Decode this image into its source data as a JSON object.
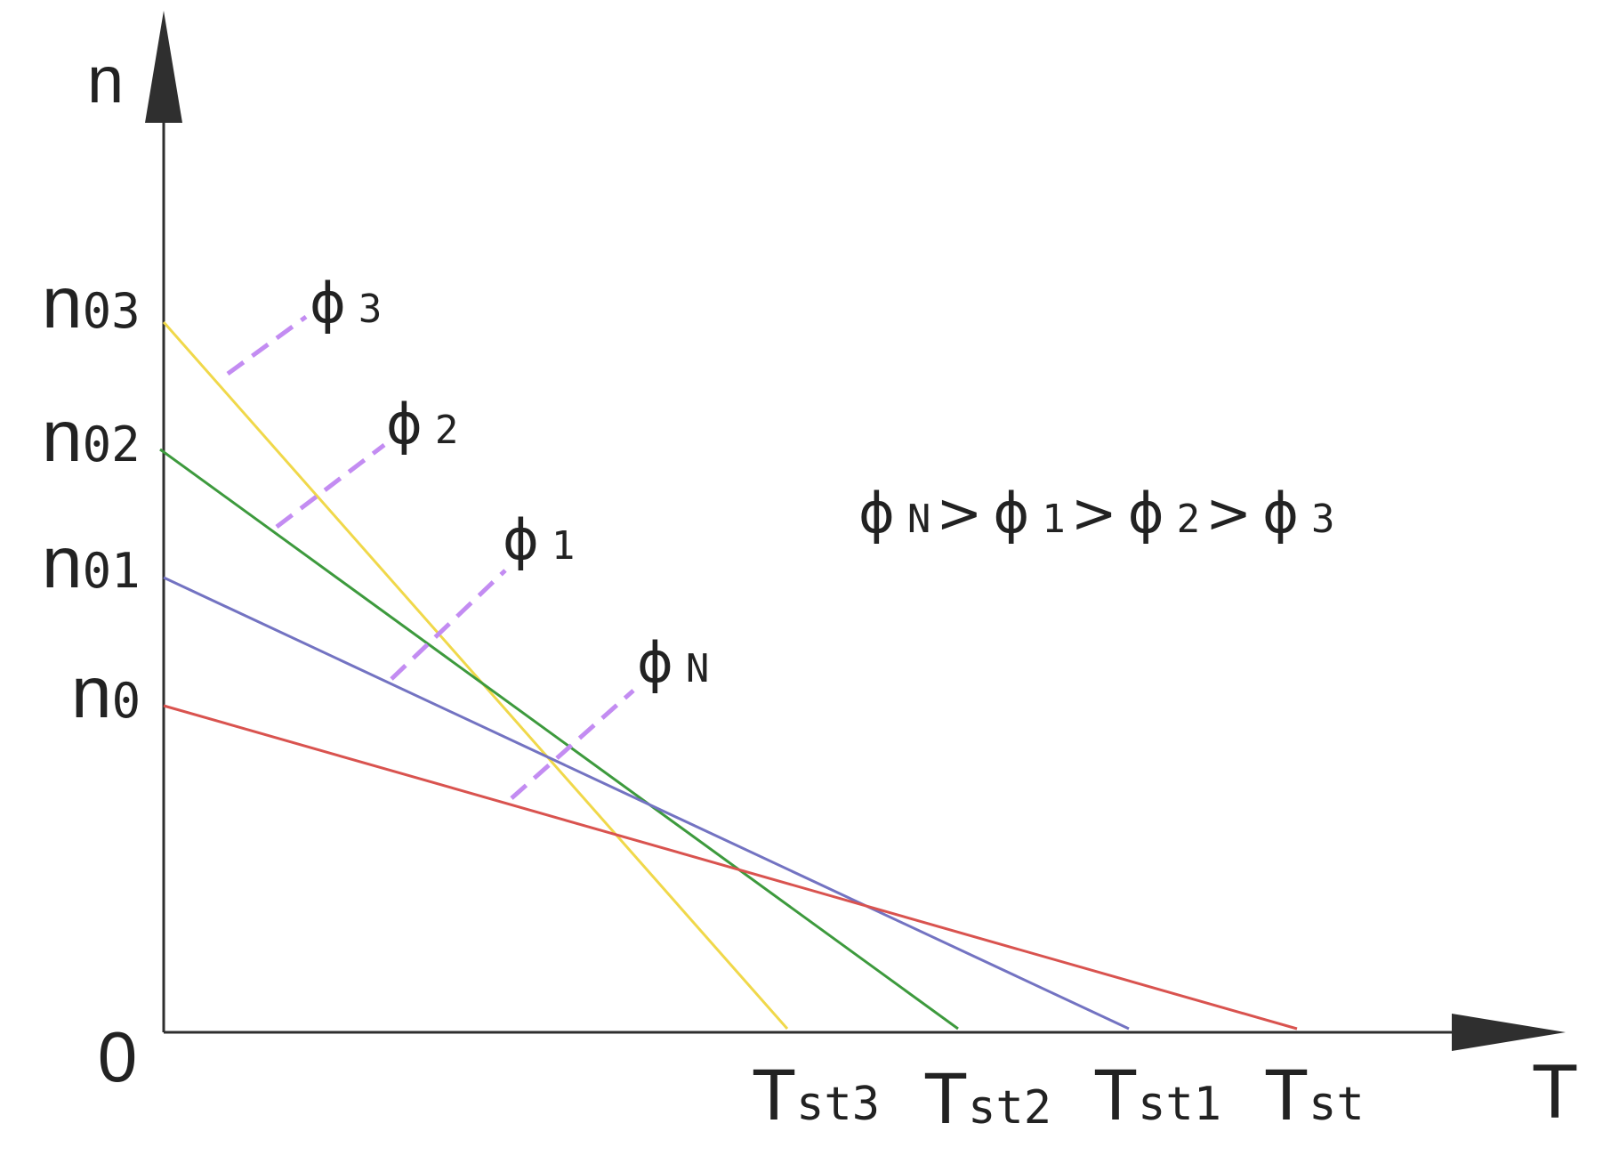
{
  "axes": {
    "y_label": "n",
    "x_label": "T",
    "origin_label": "0"
  },
  "y_ticks": [
    {
      "main": "n",
      "sub": "03"
    },
    {
      "main": "n",
      "sub": "02"
    },
    {
      "main": "n",
      "sub": "01"
    },
    {
      "main": "n",
      "sub": "0"
    }
  ],
  "x_ticks": [
    {
      "main": "T",
      "sub": "st3"
    },
    {
      "main": "T",
      "sub": "st2"
    },
    {
      "main": "T",
      "sub": "st1"
    },
    {
      "main": "T",
      "sub": "st"
    }
  ],
  "lines": [
    {
      "name": "phi3",
      "color": "#f0d84a",
      "label_main": "ϕ",
      "label_sub": "3"
    },
    {
      "name": "phi2",
      "color": "#3d9a3d",
      "label_main": "ϕ",
      "label_sub": "2"
    },
    {
      "name": "phi1",
      "color": "#7373c2",
      "label_main": "ϕ",
      "label_sub": "1"
    },
    {
      "name": "phiN",
      "color": "#d9534f",
      "label_main": "ϕ",
      "label_sub": "N"
    }
  ],
  "leader_color": "#c38cf2",
  "relation": {
    "parts": [
      {
        "main": "ϕ",
        "sub": "N"
      },
      {
        "sep": ">"
      },
      {
        "main": "ϕ",
        "sub": "1"
      },
      {
        "sep": ">"
      },
      {
        "main": "ϕ",
        "sub": "2"
      },
      {
        "sep": ">"
      },
      {
        "main": "ϕ",
        "sub": "3"
      }
    ]
  }
}
